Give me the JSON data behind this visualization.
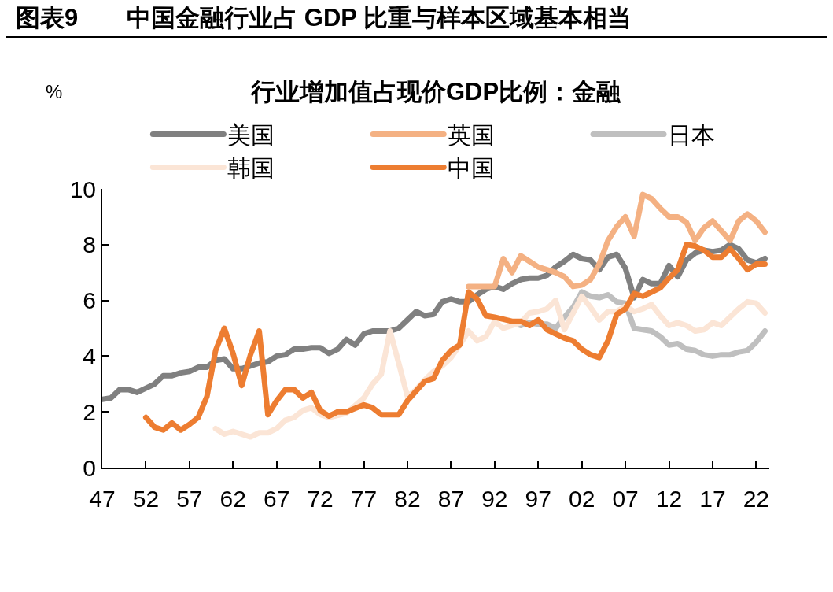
{
  "chart_data": {
    "type": "line",
    "title": "图表9　　中国金融行业占 GDP 比重与样本区域基本相当",
    "subtitle": "行业增加值占现价GDP比例：金融",
    "ylabel": "%",
    "xlim": [
      1947,
      2023.5
    ],
    "ylim": [
      0,
      10
    ],
    "xticks": [
      {
        "value": 1947,
        "label": "47"
      },
      {
        "value": 1952,
        "label": "52"
      },
      {
        "value": 1957,
        "label": "57"
      },
      {
        "value": 1962,
        "label": "62"
      },
      {
        "value": 1967,
        "label": "67"
      },
      {
        "value": 1972,
        "label": "72"
      },
      {
        "value": 1977,
        "label": "77"
      },
      {
        "value": 1982,
        "label": "82"
      },
      {
        "value": 1987,
        "label": "87"
      },
      {
        "value": 1992,
        "label": "92"
      },
      {
        "value": 1997,
        "label": "97"
      },
      {
        "value": 2002,
        "label": "02"
      },
      {
        "value": 2007,
        "label": "07"
      },
      {
        "value": 2012,
        "label": "12"
      },
      {
        "value": 2017,
        "label": "17"
      },
      {
        "value": 2022,
        "label": "22"
      }
    ],
    "yticks": [
      0,
      2,
      4,
      6,
      8,
      10
    ],
    "legend": "top",
    "marker": "none",
    "line_style": "solid",
    "series": [
      {
        "name": "美国",
        "color": "#808080",
        "x": [
          1947,
          1948,
          1949,
          1950,
          1951,
          1953,
          1954,
          1955,
          1956,
          1957,
          1958,
          1959,
          1960,
          1961,
          1962,
          1963,
          1965,
          1966,
          1967,
          1968,
          1969,
          1970,
          1971,
          1972,
          1973,
          1974,
          1975,
          1976,
          1977,
          1978,
          1980,
          1981,
          1982,
          1983,
          1984,
          1985,
          1986,
          1987,
          1988,
          1989,
          1990,
          1991,
          1992,
          1993,
          1994,
          1995,
          1996,
          1997,
          1998,
          1999,
          2000,
          2001,
          2002,
          2003,
          2004,
          2005,
          2006,
          2007,
          2008,
          2009,
          2010,
          2011,
          2012,
          2013,
          2014,
          2015,
          2016,
          2017,
          2018,
          2019,
          2020,
          2021,
          2022,
          2023
        ],
        "values": [
          2.45,
          2.5,
          2.8,
          2.8,
          2.7,
          3.0,
          3.3,
          3.3,
          3.4,
          3.45,
          3.6,
          3.6,
          3.85,
          3.9,
          3.55,
          3.55,
          3.75,
          3.8,
          4.0,
          4.05,
          4.25,
          4.25,
          4.3,
          4.3,
          4.1,
          4.25,
          4.6,
          4.4,
          4.8,
          4.9,
          4.9,
          5.0,
          5.3,
          5.6,
          5.45,
          5.5,
          5.95,
          6.05,
          5.95,
          5.95,
          6.2,
          6.4,
          6.5,
          6.4,
          6.6,
          6.75,
          6.8,
          6.8,
          6.9,
          7.2,
          7.4,
          7.65,
          7.5,
          7.45,
          7.1,
          7.55,
          7.65,
          7.15,
          6.1,
          6.75,
          6.6,
          6.6,
          7.25,
          6.85,
          7.45,
          7.7,
          7.8,
          7.75,
          7.8,
          8.0,
          7.85,
          7.45,
          7.35,
          7.5
        ]
      },
      {
        "name": "英国",
        "color": "#f4b183",
        "x": [
          1989,
          1990,
          1991,
          1992,
          1993,
          1994,
          1995,
          1996,
          1997,
          1998,
          1999,
          2000,
          2001,
          2002,
          2003,
          2004,
          2005,
          2006,
          2007,
          2008,
          2009,
          2010,
          2011,
          2012,
          2013,
          2014,
          2015,
          2016,
          2017,
          2018,
          2019,
          2020,
          2021,
          2022,
          2023
        ],
        "values": [
          6.5,
          6.5,
          6.5,
          6.5,
          7.5,
          7.0,
          7.6,
          7.4,
          7.2,
          7.1,
          7.0,
          6.85,
          6.5,
          6.55,
          6.75,
          7.3,
          8.15,
          8.65,
          9.0,
          8.3,
          9.8,
          9.65,
          9.3,
          9.0,
          9.0,
          8.8,
          8.15,
          8.6,
          8.85,
          8.5,
          8.15,
          8.85,
          9.1,
          8.85,
          8.45
        ]
      },
      {
        "name": "日本",
        "color": "#bfbfbf",
        "x": [
          1994,
          1995,
          1996,
          1997,
          1998,
          1999,
          2000,
          2001,
          2002,
          2003,
          2004,
          2005,
          2006,
          2007,
          2008,
          2009,
          2010,
          2011,
          2012,
          2013,
          2014,
          2015,
          2016,
          2017,
          2018,
          2019,
          2020,
          2021,
          2022,
          2023
        ],
        "values": [
          5.2,
          5.1,
          5.2,
          5.15,
          5.15,
          5.0,
          5.4,
          5.75,
          6.3,
          6.15,
          6.1,
          6.2,
          5.95,
          5.9,
          5.0,
          4.95,
          4.9,
          4.7,
          4.4,
          4.45,
          4.25,
          4.2,
          4.05,
          4.0,
          4.05,
          4.05,
          4.15,
          4.2,
          4.5,
          4.9
        ]
      },
      {
        "name": "韩国",
        "color": "#fbe5d6",
        "x": [
          1960,
          1961,
          1962,
          1964,
          1965,
          1966,
          1967,
          1968,
          1969,
          1970,
          1971,
          1972,
          1973,
          1975,
          1977,
          1978,
          1979,
          1980,
          1981,
          1982,
          1983,
          1984,
          1985,
          1986,
          1987,
          1988,
          1989,
          1990,
          1991,
          1992,
          1993,
          1995,
          1996,
          1997,
          1998,
          1999,
          2000,
          2001,
          2002,
          2003,
          2004,
          2005,
          2006,
          2007,
          2008,
          2009,
          2010,
          2011,
          2012,
          2013,
          2014,
          2015,
          2016,
          2017,
          2018,
          2019,
          2020,
          2021,
          2022,
          2023
        ],
        "values": [
          1.4,
          1.2,
          1.3,
          1.1,
          1.25,
          1.25,
          1.4,
          1.7,
          1.8,
          2.05,
          2.15,
          1.9,
          1.8,
          1.95,
          2.5,
          3.0,
          3.35,
          4.9,
          3.75,
          2.55,
          2.8,
          3.15,
          3.45,
          3.65,
          3.95,
          4.4,
          4.9,
          4.55,
          4.7,
          5.25,
          5.0,
          5.2,
          5.55,
          5.6,
          5.7,
          6.0,
          4.95,
          5.55,
          6.15,
          5.75,
          5.3,
          5.6,
          5.6,
          5.8,
          5.6,
          5.7,
          5.85,
          5.45,
          5.1,
          5.2,
          5.1,
          4.9,
          4.95,
          5.2,
          5.1,
          5.4,
          5.7,
          5.95,
          5.9,
          5.55
        ]
      },
      {
        "name": "中国",
        "color": "#ed7d31",
        "x": [
          1952,
          1953,
          1954,
          1955,
          1956,
          1957,
          1958,
          1959,
          1960,
          1961,
          1962,
          1963,
          1964,
          1965,
          1966,
          1967,
          1968,
          1969,
          1970,
          1971,
          1972,
          1973,
          1974,
          1975,
          1977,
          1978,
          1979,
          1981,
          1982,
          1983,
          1984,
          1985,
          1986,
          1987,
          1988,
          1989,
          1990,
          1991,
          1992,
          1994,
          1995,
          1996,
          1997,
          1998,
          1999,
          2000,
          2001,
          2002,
          2003,
          2004,
          2005,
          2006,
          2007,
          2008,
          2009,
          2010,
          2011,
          2012,
          2013,
          2014,
          2015,
          2016,
          2017,
          2018,
          2019,
          2020,
          2021,
          2022,
          2023
        ],
        "values": [
          1.8,
          1.45,
          1.35,
          1.6,
          1.35,
          1.55,
          1.8,
          2.55,
          4.2,
          5.0,
          4.1,
          2.95,
          4.05,
          4.9,
          1.9,
          2.4,
          2.8,
          2.8,
          2.5,
          2.7,
          2.05,
          1.85,
          2.0,
          2.0,
          2.25,
          2.15,
          1.9,
          1.9,
          2.4,
          2.75,
          3.1,
          3.2,
          3.85,
          4.2,
          4.4,
          6.3,
          6.05,
          5.45,
          5.4,
          5.25,
          5.25,
          5.1,
          5.3,
          4.95,
          4.8,
          4.65,
          4.55,
          4.25,
          4.05,
          3.95,
          4.55,
          5.5,
          5.7,
          6.25,
          6.15,
          6.3,
          6.45,
          6.8,
          7.1,
          8.0,
          7.95,
          7.8,
          7.55,
          7.55,
          7.85,
          7.5,
          7.1,
          7.3,
          7.3
        ]
      }
    ]
  }
}
